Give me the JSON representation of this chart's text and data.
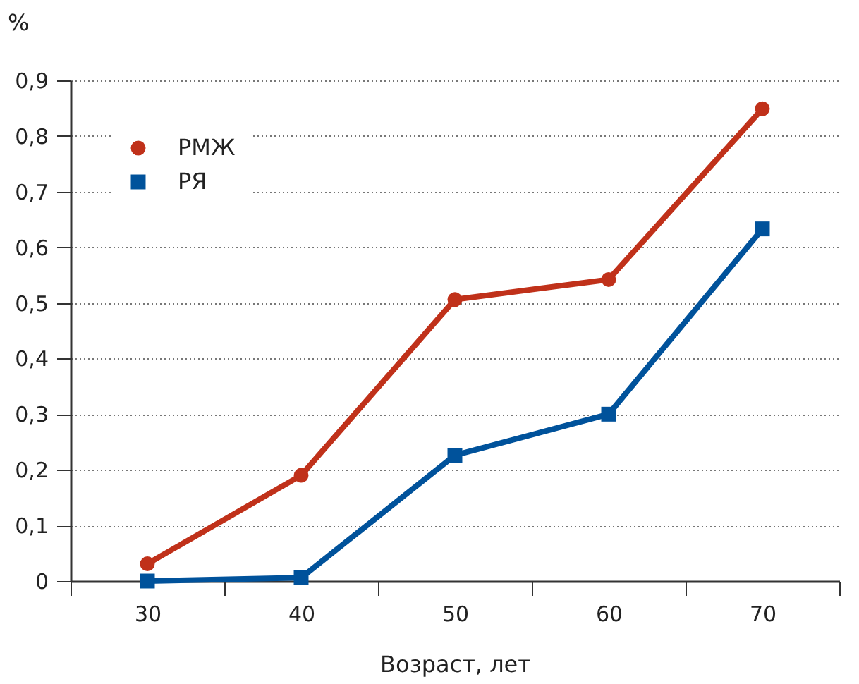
{
  "chart_data": {
    "type": "line",
    "xlabel": "Возраст, лет",
    "ylabel": "%",
    "categories": [
      "30",
      "40",
      "50",
      "60",
      "70"
    ],
    "series": [
      {
        "name": "РМЖ",
        "color": "#c0311a",
        "marker": "circle",
        "values": [
          0.031,
          0.19,
          0.506,
          0.542,
          0.849
        ]
      },
      {
        "name": "РЯ",
        "color": "#00529b",
        "marker": "square",
        "values": [
          0,
          0.006,
          0.226,
          0.3,
          0.633
        ]
      }
    ],
    "ylim": [
      0,
      0.9
    ],
    "yticks": [
      {
        "value": 0,
        "label": "0"
      },
      {
        "value": 0.1,
        "label": "0,1"
      },
      {
        "value": 0.2,
        "label": "0,2"
      },
      {
        "value": 0.3,
        "label": "0,3"
      },
      {
        "value": 0.4,
        "label": "0,4"
      },
      {
        "value": 0.5,
        "label": "0,5"
      },
      {
        "value": 0.6,
        "label": "0,6"
      },
      {
        "value": 0.7,
        "label": "0,7"
      },
      {
        "value": 0.8,
        "label": "0,8"
      },
      {
        "value": 0.9,
        "label": "0,9"
      }
    ],
    "grid": "y",
    "legend": "top left",
    "line_style": "solid"
  }
}
